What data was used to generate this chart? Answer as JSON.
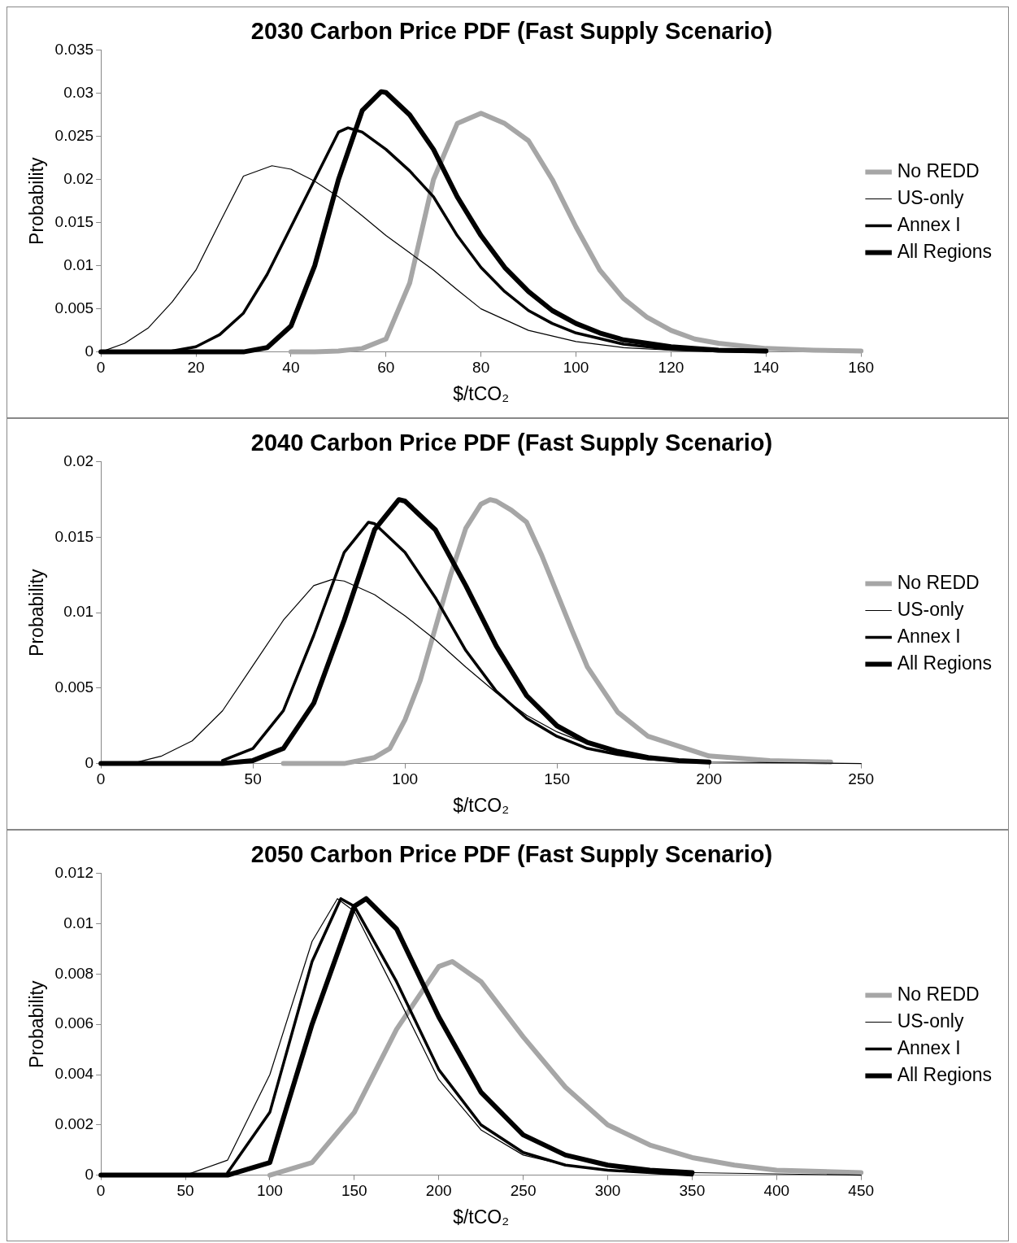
{
  "chart_data": [
    {
      "type": "line",
      "title": "2030 Carbon Price PDF (Fast Supply Scenario)",
      "xlabel": "$/tCO₂",
      "ylabel": "Probability",
      "xlim": [
        0,
        160
      ],
      "xticks": [
        0,
        20,
        40,
        60,
        80,
        100,
        120,
        140,
        160
      ],
      "ylim": [
        0,
        0.035
      ],
      "yticks": [
        0,
        0.005,
        0.01,
        0.015,
        0.02,
        0.025,
        0.03,
        0.035
      ],
      "grid": false,
      "legend": "right",
      "marker": "none",
      "line_style": "solid",
      "series": [
        {
          "name": "No REDD",
          "color": "#a6a6a6",
          "x": [
            40,
            45,
            50,
            55,
            60,
            65,
            70,
            75,
            80,
            85,
            90,
            95,
            100,
            105,
            110,
            115,
            120,
            125,
            130,
            140,
            150,
            160
          ],
          "values": [
            0,
            0,
            0.0001,
            0.0004,
            0.0015,
            0.008,
            0.02,
            0.0265,
            0.0277,
            0.0265,
            0.0245,
            0.02,
            0.0145,
            0.0095,
            0.0062,
            0.004,
            0.0025,
            0.0015,
            0.001,
            0.0004,
            0.0002,
            0.0001
          ]
        },
        {
          "name": "US-only",
          "color": "#000000",
          "x": [
            0,
            5,
            10,
            15,
            20,
            25,
            30,
            36,
            40,
            45,
            50,
            55,
            60,
            65,
            70,
            75,
            80,
            90,
            100,
            110,
            120,
            130,
            140
          ],
          "values": [
            0,
            0.001,
            0.0028,
            0.0058,
            0.0095,
            0.015,
            0.0204,
            0.0216,
            0.0212,
            0.0198,
            0.018,
            0.0158,
            0.0135,
            0.0115,
            0.0095,
            0.0072,
            0.005,
            0.0025,
            0.0012,
            0.0005,
            0.0002,
            0.0001,
            0
          ]
        },
        {
          "name": "Annex I",
          "color": "#000000",
          "x": [
            15,
            20,
            25,
            30,
            35,
            40,
            45,
            50,
            52,
            55,
            60,
            65,
            70,
            75,
            80,
            85,
            90,
            95,
            100,
            110,
            120,
            130,
            140
          ],
          "values": [
            0.0001,
            0.0006,
            0.002,
            0.0045,
            0.009,
            0.0145,
            0.02,
            0.0255,
            0.026,
            0.0255,
            0.0235,
            0.021,
            0.018,
            0.0135,
            0.0098,
            0.007,
            0.0048,
            0.0033,
            0.0022,
            0.0009,
            0.0003,
            0.0001,
            0
          ]
        },
        {
          "name": "All Regions",
          "color": "#000000",
          "x": [
            0,
            30,
            35,
            40,
            45,
            50,
            55,
            59,
            60,
            65,
            70,
            75,
            80,
            85,
            90,
            95,
            100,
            105,
            110,
            120,
            130,
            140
          ],
          "values": [
            0,
            0,
            0.0005,
            0.003,
            0.01,
            0.02,
            0.028,
            0.0302,
            0.0301,
            0.0275,
            0.0235,
            0.018,
            0.0135,
            0.0098,
            0.007,
            0.0048,
            0.0033,
            0.0022,
            0.0014,
            0.0006,
            0.0002,
            0.0001
          ]
        }
      ]
    },
    {
      "type": "line",
      "title": "2040 Carbon Price PDF (Fast Supply Scenario)",
      "xlabel": "$/tCO₂",
      "ylabel": "Probability",
      "xlim": [
        0,
        250
      ],
      "xticks": [
        0,
        50,
        100,
        150,
        200,
        250
      ],
      "ylim": [
        0,
        0.02
      ],
      "yticks": [
        0,
        0.005,
        0.01,
        0.015,
        0.02
      ],
      "grid": false,
      "legend": "right",
      "marker": "none",
      "line_style": "solid",
      "series": [
        {
          "name": "No REDD",
          "color": "#a6a6a6",
          "x": [
            60,
            80,
            90,
            95,
            100,
            105,
            110,
            115,
            120,
            125,
            128,
            130,
            135,
            140,
            145,
            150,
            155,
            160,
            170,
            180,
            200,
            220,
            240
          ],
          "values": [
            0,
            0,
            0.0004,
            0.001,
            0.0029,
            0.0055,
            0.009,
            0.0125,
            0.0156,
            0.0172,
            0.0175,
            0.0174,
            0.0168,
            0.016,
            0.0138,
            0.0113,
            0.0088,
            0.0064,
            0.0034,
            0.0018,
            0.0005,
            0.0002,
            0.0001
          ]
        },
        {
          "name": "US-only",
          "color": "#000000",
          "x": [
            10,
            20,
            30,
            40,
            50,
            60,
            70,
            76,
            80,
            90,
            100,
            110,
            120,
            130,
            140,
            150,
            160,
            170,
            180,
            200,
            250
          ],
          "values": [
            0,
            0.0005,
            0.0015,
            0.0035,
            0.0065,
            0.0095,
            0.0118,
            0.0122,
            0.0121,
            0.0112,
            0.0098,
            0.0082,
            0.0064,
            0.0047,
            0.0032,
            0.0021,
            0.0013,
            0.0007,
            0.0004,
            0.0001,
            0
          ]
        },
        {
          "name": "Annex I",
          "color": "#000000",
          "x": [
            40,
            50,
            60,
            70,
            80,
            88,
            90,
            100,
            110,
            120,
            130,
            140,
            150,
            160,
            170,
            180,
            200
          ],
          "values": [
            0.0002,
            0.001,
            0.0035,
            0.0085,
            0.014,
            0.016,
            0.0159,
            0.014,
            0.011,
            0.0075,
            0.0048,
            0.003,
            0.0018,
            0.001,
            0.0006,
            0.0003,
            0.0001
          ]
        },
        {
          "name": "All Regions",
          "color": "#000000",
          "x": [
            0,
            40,
            50,
            60,
            70,
            80,
            90,
            98,
            100,
            110,
            120,
            130,
            140,
            150,
            160,
            170,
            180,
            190,
            200
          ],
          "values": [
            0,
            0,
            0.0002,
            0.001,
            0.004,
            0.0095,
            0.0155,
            0.0175,
            0.0174,
            0.0155,
            0.0118,
            0.0078,
            0.0045,
            0.0025,
            0.0014,
            0.0008,
            0.0004,
            0.0002,
            0.0001
          ]
        }
      ]
    },
    {
      "type": "line",
      "title": "2050 Carbon Price PDF (Fast Supply Scenario)",
      "xlabel": "$/tCO₂",
      "ylabel": "Probability",
      "xlim": [
        0,
        450
      ],
      "xticks": [
        0,
        50,
        100,
        150,
        200,
        250,
        300,
        350,
        400,
        450
      ],
      "ylim": [
        0,
        0.012
      ],
      "yticks": [
        0,
        0.002,
        0.004,
        0.006,
        0.008,
        0.01,
        0.012
      ],
      "grid": false,
      "legend": "right",
      "marker": "none",
      "line_style": "solid",
      "series": [
        {
          "name": "No REDD",
          "color": "#a6a6a6",
          "x": [
            100,
            125,
            150,
            175,
            200,
            208,
            225,
            250,
            275,
            300,
            325,
            350,
            375,
            400,
            450
          ],
          "values": [
            0,
            0.0005,
            0.0025,
            0.0058,
            0.0083,
            0.0085,
            0.0077,
            0.0055,
            0.0035,
            0.002,
            0.0012,
            0.0007,
            0.0004,
            0.0002,
            0.0001
          ]
        },
        {
          "name": "US-only",
          "color": "#000000",
          "x": [
            50,
            75,
            100,
            125,
            140,
            150,
            175,
            200,
            225,
            250,
            275,
            300,
            350,
            450
          ],
          "values": [
            0,
            0.0006,
            0.004,
            0.0093,
            0.011,
            0.0105,
            0.0072,
            0.0038,
            0.0018,
            0.0008,
            0.0004,
            0.0002,
            0.0001,
            0
          ]
        },
        {
          "name": "Annex I",
          "color": "#000000",
          "x": [
            75,
            100,
            125,
            142,
            150,
            175,
            200,
            225,
            250,
            275,
            300,
            350
          ],
          "values": [
            0.0001,
            0.0025,
            0.0085,
            0.011,
            0.0107,
            0.0077,
            0.0042,
            0.002,
            0.0009,
            0.0004,
            0.0002,
            0
          ]
        },
        {
          "name": "All Regions",
          "color": "#000000",
          "x": [
            0,
            75,
            100,
            125,
            150,
            157,
            175,
            200,
            225,
            250,
            275,
            300,
            325,
            350
          ],
          "values": [
            0,
            0,
            0.0005,
            0.006,
            0.0107,
            0.011,
            0.0098,
            0.0063,
            0.0033,
            0.0016,
            0.0008,
            0.0004,
            0.0002,
            0.0001
          ]
        }
      ]
    }
  ]
}
